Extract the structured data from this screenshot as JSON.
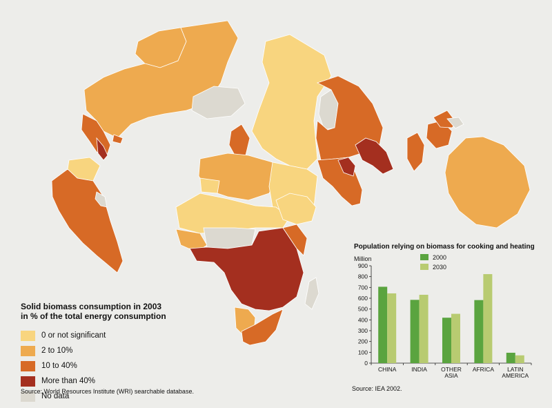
{
  "legend": {
    "title_line1": "Solid biomass consumption in 2003",
    "title_line2": "in % of the total energy consumption",
    "items": [
      {
        "label": "0 or not significant",
        "color": "#f8d57f"
      },
      {
        "label": "2 to 10%",
        "color": "#eeaa4f"
      },
      {
        "label": "10 to 40%",
        "color": "#d76a26"
      },
      {
        "label": "More than 40%",
        "color": "#a42f1f"
      },
      {
        "label": "No data",
        "color": "#dcd9d0"
      }
    ]
  },
  "map_source": "Source: World Resources Institute (WRI) searchable database.",
  "colors": {
    "background": "#ededea",
    "ocean": "#ededea",
    "bar_2000": "#5aa43f",
    "bar_2030": "#b8cb71"
  },
  "chart_data": {
    "type": "bar",
    "title": "Population relying on biomass for cooking and heating",
    "ylabel": "Million",
    "ylim": [
      0,
      900
    ],
    "yticks": [
      0,
      100,
      200,
      300,
      400,
      500,
      600,
      700,
      800,
      900
    ],
    "categories": [
      [
        "CHINA"
      ],
      [
        "INDIA"
      ],
      [
        "OTHER",
        "ASIA"
      ],
      [
        "AFRICA"
      ],
      [
        "LATIN",
        "AMERICA"
      ]
    ],
    "series": [
      {
        "name": "2000",
        "values": [
          706,
          585,
          420,
          583,
          96
        ]
      },
      {
        "name": "2030",
        "values": [
          645,
          632,
          456,
          823,
          72
        ]
      }
    ],
    "legend_position": "top-center",
    "grid": false
  },
  "chart_source": "Source: IEA 2002."
}
